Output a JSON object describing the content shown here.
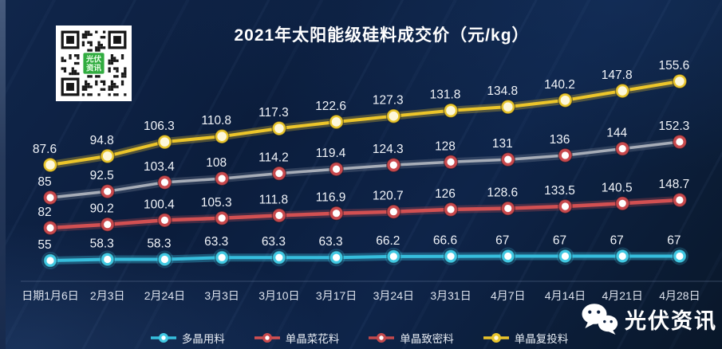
{
  "chart_data": {
    "type": "line",
    "title": "2021年太阳能级硅料成交价（元/kg）",
    "categories": [
      "日期1月6日",
      "2月3日",
      "2月24日",
      "3月3日",
      "3月10日",
      "3月17日",
      "3月24日",
      "3月31日",
      "4月7日",
      "4月14日",
      "4月21日",
      "4月28日"
    ],
    "series": [
      {
        "name": "多晶用料",
        "color": "#36bedd",
        "marker_ring": "#41c8e2",
        "marker_fill": "#ffffff",
        "values": [
          55,
          58.3,
          58.3,
          63.3,
          63.3,
          63.3,
          66.2,
          66.6,
          67,
          67,
          67,
          67
        ]
      },
      {
        "name": "单晶菜花料",
        "color": "#d25052",
        "marker_ring": "#c8494d",
        "marker_fill": "#ffffff",
        "values": [
          82,
          90.2,
          100.4,
          105.3,
          111.8,
          116.9,
          120.7,
          126,
          128.6,
          133.5,
          140.5,
          148.7
        ]
      },
      {
        "name": "单晶致密料",
        "color": "#a7adb8",
        "legend_color": "#c4494d",
        "marker_ring": "#c8494d",
        "marker_fill": "#ffffff",
        "values": [
          85,
          92.5,
          103.4,
          108,
          114.2,
          119.4,
          124.3,
          128,
          131,
          136,
          144,
          152.3
        ]
      },
      {
        "name": "单晶复投料",
        "color": "#ecc52a",
        "marker_ring": "#e8c52c",
        "marker_fill": "#fdf7da",
        "values": [
          87.6,
          94.8,
          106.3,
          110.8,
          117.3,
          122.6,
          127.3,
          131.8,
          134.8,
          140.2,
          147.8,
          155.6
        ]
      }
    ],
    "legend_position": "bottom",
    "grid": false,
    "value_labels": true
  },
  "qr_badge": {
    "line1": "光伏",
    "line2": "资讯"
  },
  "brand": "光伏资讯"
}
